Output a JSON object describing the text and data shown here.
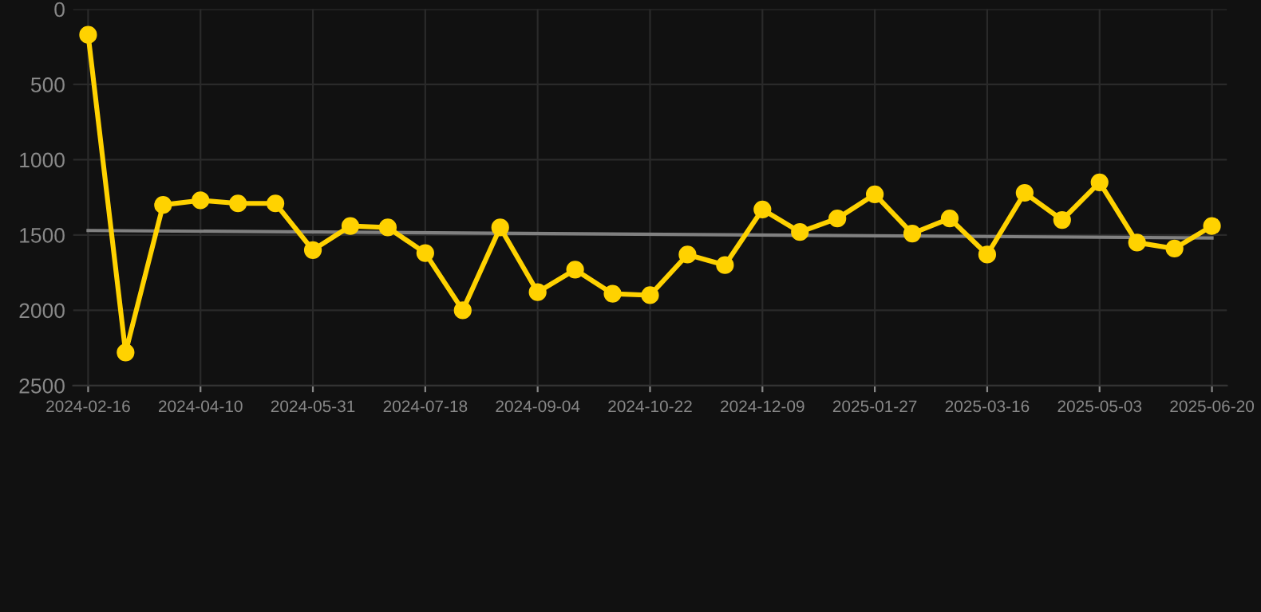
{
  "chart_data": {
    "type": "line",
    "categories": [
      "2024-02-16",
      null,
      null,
      "2024-04-10",
      null,
      null,
      "2024-05-31",
      null,
      null,
      "2024-07-18",
      null,
      null,
      "2024-09-04",
      null,
      null,
      "2024-10-22",
      null,
      null,
      "2024-12-09",
      null,
      null,
      "2025-01-27",
      null,
      null,
      "2025-03-16",
      null,
      null,
      "2025-05-03",
      null,
      null,
      "2025-06-20"
    ],
    "series": [
      {
        "color": "#ffd200",
        "marker": "circle",
        "values": [
          170,
          2280,
          1300,
          1270,
          1290,
          1290,
          1600,
          1440,
          1450,
          1620,
          2000,
          1450,
          1880,
          1730,
          1890,
          1900,
          1630,
          1700,
          1330,
          1480,
          1390,
          1230,
          1490,
          1390,
          1630,
          1220,
          1400,
          1150,
          1550,
          1590,
          1440
        ]
      },
      {
        "color": "#808080",
        "marker": "none",
        "values": [
          1470,
          null,
          null,
          null,
          null,
          null,
          null,
          null,
          null,
          null,
          null,
          null,
          null,
          null,
          null,
          null,
          null,
          null,
          null,
          null,
          null,
          null,
          null,
          null,
          null,
          null,
          null,
          null,
          null,
          null,
          1520
        ]
      }
    ],
    "ylim": [
      2500,
      0
    ],
    "yticks": [
      0,
      500,
      1000,
      1500,
      2000,
      2500
    ],
    "grid": true
  }
}
